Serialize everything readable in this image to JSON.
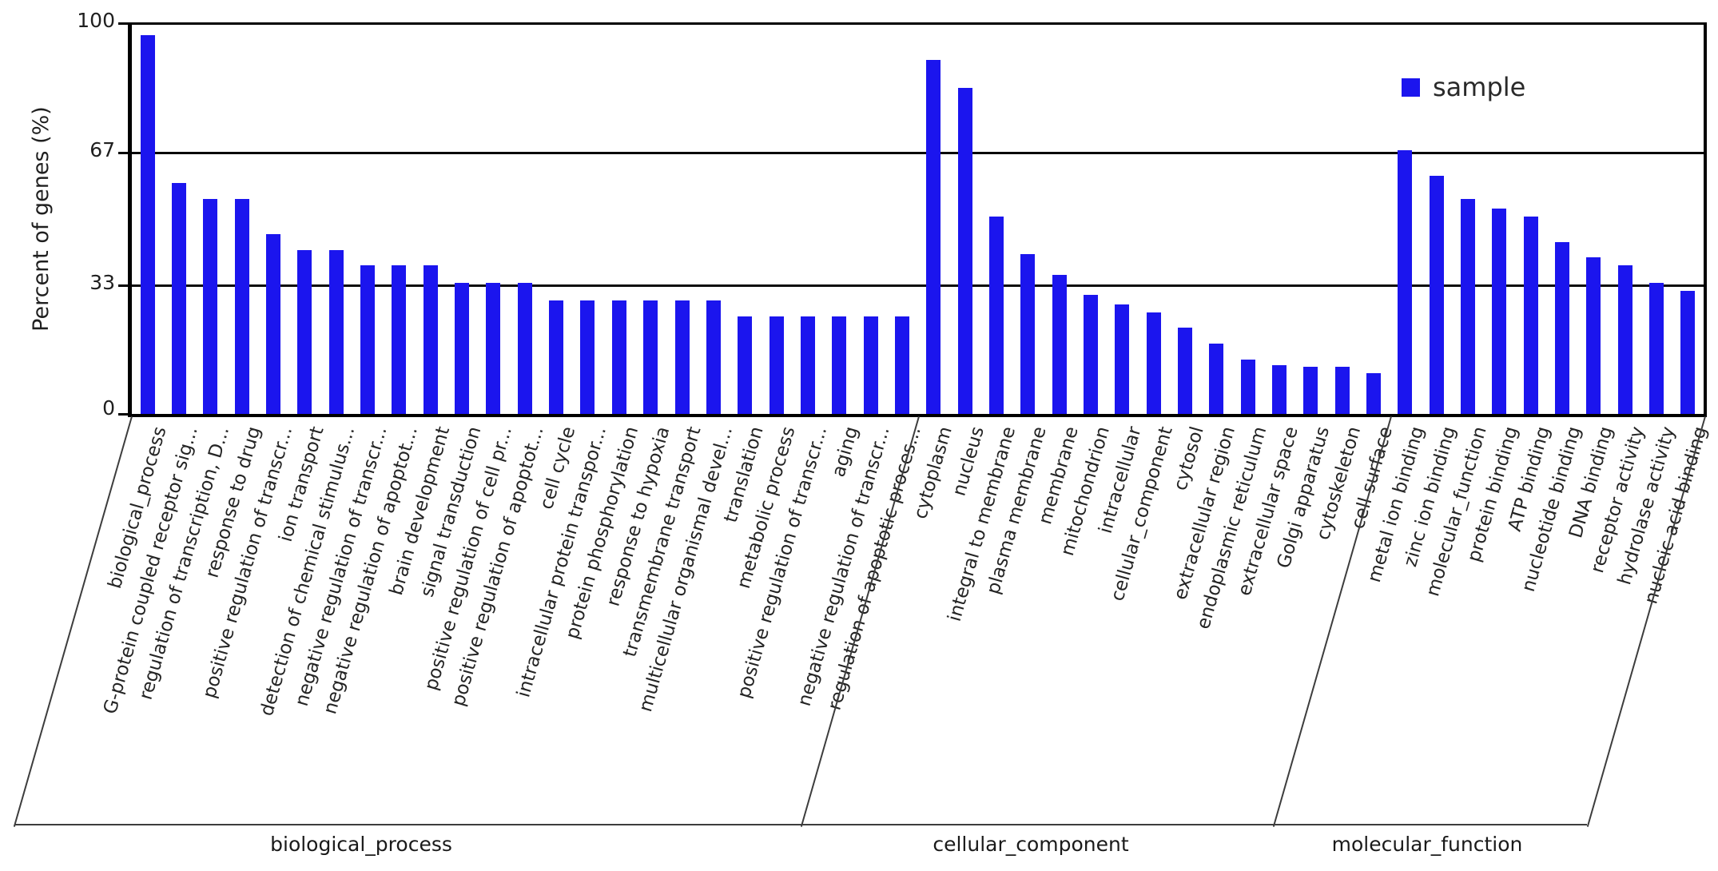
{
  "figure": {
    "ylabel": "Percent of genes (%)",
    "yticks": [
      "100",
      "67",
      "33",
      "0"
    ],
    "legend": {
      "label": "sample"
    },
    "bar_color": "#1b15ee"
  },
  "chart_data": {
    "type": "bar",
    "title": "",
    "xlabel": "",
    "ylabel": "Percent of genes (%)",
    "ylim": [
      0,
      100
    ],
    "ytick_values": [
      0,
      33,
      67,
      100
    ],
    "gridlines_at": [
      33,
      67
    ],
    "grid": "horizontal lines at 33 and 67",
    "legend_entries": [
      "sample"
    ],
    "legend_position": "upper right",
    "bar_color": "#1b15ee",
    "groups": [
      {
        "name": "biological_process",
        "categories": [
          "biological_process",
          "G-protein coupled receptor sig...",
          "regulation of transcription, D...",
          "response to drug",
          "positive regulation of transcr...",
          "ion transport",
          "detection of chemical stimulus...",
          "negative regulation of transcr...",
          "negative regulation of apoptot...",
          "brain development",
          "signal transduction",
          "positive regulation of cell pr...",
          "positive regulation of apoptot...",
          "cell cycle",
          "intracellular protein transpor...",
          "protein phosphorylation",
          "response to hypoxia",
          "transmembrane transport",
          "multicellular organismal devel...",
          "translation",
          "metabolic process",
          "positive regulation of transcr...",
          "aging",
          "negative regulation of transcr...",
          "regulation of apoptotic proces..."
        ],
        "values": [
          97,
          59,
          55,
          55,
          46,
          42,
          42,
          38,
          38,
          38,
          33.5,
          33.5,
          33.5,
          29,
          29,
          29,
          29,
          29,
          29,
          25,
          25,
          25,
          25,
          25,
          25
        ]
      },
      {
        "name": "cellular_component",
        "categories": [
          "cytoplasm",
          "nucleus",
          "integral to membrane",
          "plasma membrane",
          "membrane",
          "mitochondrion",
          "intracellular",
          "cellular_component",
          "cytosol",
          "extracellular region",
          "endoplasmic reticulum",
          "extracellular space",
          "Golgi apparatus",
          "cytoskeleton",
          "cell surface"
        ],
        "values": [
          90.5,
          83.5,
          50.5,
          41,
          35.5,
          30.5,
          28,
          26,
          22,
          18,
          14,
          12.5,
          12,
          12,
          10.5
        ]
      },
      {
        "name": "molecular_function",
        "categories": [
          "metal ion binding",
          "zinc ion binding",
          "molecular_function",
          "protein binding",
          "ATP binding",
          "nucleotide binding",
          "DNA binding",
          "receptor activity",
          "hydrolase activity",
          "nucleic acid binding"
        ],
        "values": [
          67.5,
          61,
          55,
          52.5,
          50.5,
          44,
          40,
          38,
          33.5,
          31.5
        ]
      }
    ]
  }
}
